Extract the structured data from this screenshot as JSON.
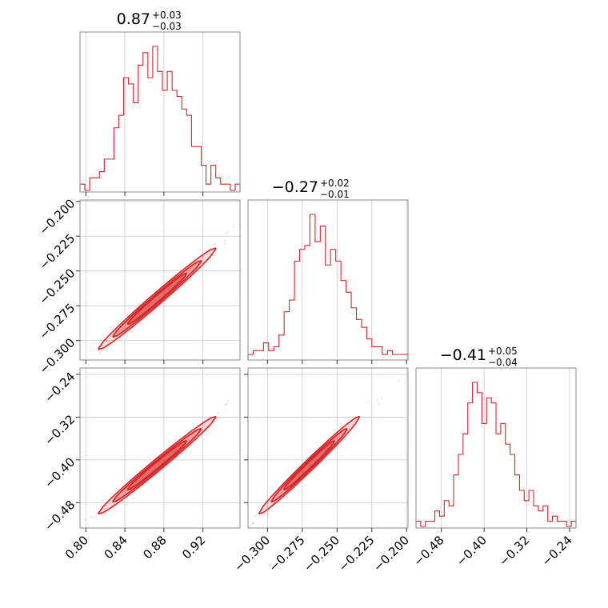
{
  "chart_data": {
    "type": "corner",
    "accent_color": "#d62728",
    "grid": true,
    "parameters": [
      {
        "title": {
          "median": "0.87",
          "plus": "+0.03",
          "minus": "−0.03"
        },
        "range": [
          0.794,
          0.958
        ],
        "ticks": [
          0.8,
          0.84,
          0.88,
          0.92
        ],
        "tick_labels": [
          "0.80",
          "0.84",
          "0.88",
          "0.92"
        ],
        "hist": [
          1,
          0,
          2,
          2,
          3,
          5,
          5,
          10,
          12,
          18,
          17,
          14,
          20,
          22,
          18,
          23,
          19,
          16,
          19,
          16,
          15,
          13,
          12,
          7,
          7,
          4,
          1,
          4,
          2,
          1,
          1,
          0,
          1
        ],
        "contour_center": 0.873,
        "contour_scale": 0.03
      },
      {
        "title": {
          "median": "−0.27",
          "plus": "+0.02",
          "minus": "−0.01"
        },
        "range": [
          -0.314,
          -0.199
        ],
        "ticks": [
          -0.3,
          -0.275,
          -0.25,
          -0.225,
          -0.2
        ],
        "tick_labels": [
          "−0.300",
          "−0.275",
          "−0.250",
          "−0.225",
          "−0.200"
        ],
        "hist": [
          1,
          2,
          2,
          4,
          2,
          3,
          6,
          12,
          15,
          25,
          28,
          29,
          37,
          30,
          34,
          24,
          28,
          25,
          20,
          17,
          13,
          10,
          8,
          5,
          3,
          3,
          1,
          2,
          1,
          1,
          1
        ],
        "contour_center": -0.27,
        "contour_scale": 0.018
      },
      {
        "title": {
          "median": "−0.41",
          "plus": "+0.05",
          "minus": "−0.04"
        },
        "range": [
          -0.5275,
          -0.228
        ],
        "ticks": [
          -0.48,
          -0.4,
          -0.32,
          -0.24
        ],
        "tick_labels": [
          "−0.48",
          "−0.40",
          "−0.32",
          "−0.24"
        ],
        "hist": [
          1,
          0,
          1,
          1,
          3,
          2,
          5,
          4,
          10,
          14,
          18,
          24,
          28,
          26,
          20,
          25,
          24,
          18,
          20,
          16,
          14,
          10,
          7,
          5,
          7,
          4,
          3,
          4,
          1,
          2,
          1,
          1,
          0,
          1
        ],
        "contour_center": -0.41,
        "contour_scale": 0.045
      }
    ],
    "pairs": [
      {
        "x": 0,
        "y": 1
      },
      {
        "x": 0,
        "y": 2
      },
      {
        "x": 1,
        "y": 2
      }
    ]
  }
}
